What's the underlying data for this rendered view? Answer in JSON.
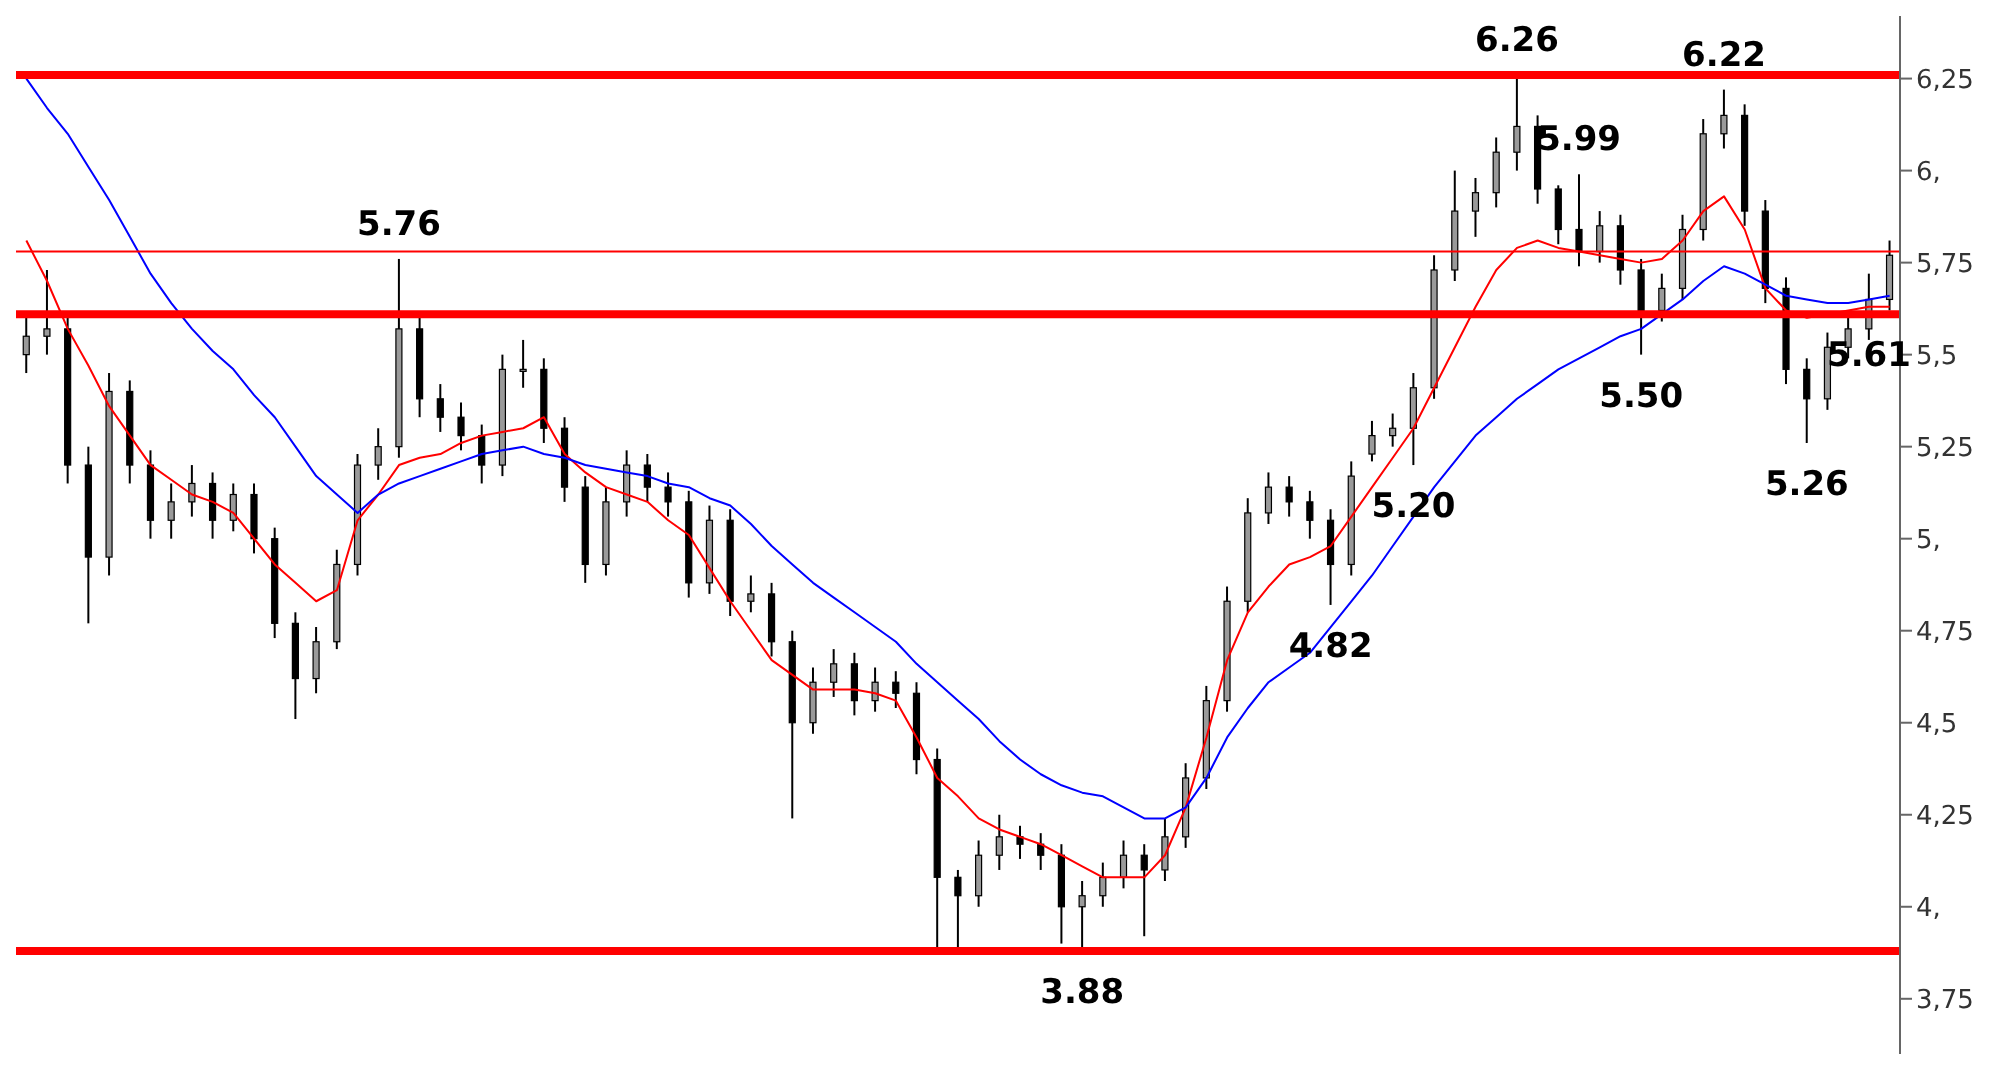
{
  "chart_data": {
    "type": "candlestick",
    "tick_labels": "y",
    "categories": [
      null,
      null,
      null,
      null,
      null,
      null,
      null,
      null,
      null,
      null,
      null,
      null,
      null,
      null,
      null,
      null,
      null,
      null,
      null,
      null,
      null,
      null,
      null,
      null,
      null,
      null,
      null,
      null,
      null,
      null,
      null,
      null,
      null,
      null,
      null,
      null,
      null,
      null,
      null,
      null,
      null,
      null,
      null,
      null,
      null,
      null,
      null,
      null,
      null,
      null,
      null,
      null,
      null,
      null,
      null,
      null,
      null,
      null,
      null,
      null,
      null,
      null,
      null,
      null,
      null,
      null,
      null,
      null,
      null,
      null,
      null,
      null,
      null,
      null,
      null,
      null,
      null,
      null,
      null,
      null,
      null,
      null,
      null,
      null,
      null,
      null,
      null,
      null,
      null,
      null,
      null
    ],
    "ohlc": [
      [
        5.5,
        5.6,
        5.45,
        5.55
      ],
      [
        5.55,
        5.73,
        5.5,
        5.57
      ],
      [
        5.57,
        5.6,
        5.15,
        5.2
      ],
      [
        5.2,
        5.25,
        4.77,
        4.95
      ],
      [
        4.95,
        5.45,
        4.9,
        5.4
      ],
      [
        5.4,
        5.43,
        5.15,
        5.2
      ],
      [
        5.2,
        5.24,
        5.0,
        5.05
      ],
      [
        5.05,
        5.15,
        5.0,
        5.1
      ],
      [
        5.1,
        5.2,
        5.06,
        5.15
      ],
      [
        5.15,
        5.18,
        5.0,
        5.05
      ],
      [
        5.05,
        5.15,
        5.02,
        5.12
      ],
      [
        5.12,
        5.15,
        4.96,
        5.0
      ],
      [
        5.0,
        5.03,
        4.73,
        4.77
      ],
      [
        4.77,
        4.8,
        4.51,
        4.62
      ],
      [
        4.62,
        4.76,
        4.58,
        4.72
      ],
      [
        4.72,
        4.97,
        4.7,
        4.93
      ],
      [
        4.93,
        5.23,
        4.9,
        5.2
      ],
      [
        5.2,
        5.3,
        5.16,
        5.25
      ],
      [
        5.25,
        5.76,
        5.22,
        5.57
      ],
      [
        5.57,
        5.6,
        5.33,
        5.38
      ],
      [
        5.38,
        5.42,
        5.29,
        5.33
      ],
      [
        5.33,
        5.37,
        5.24,
        5.28
      ],
      [
        5.28,
        5.31,
        5.15,
        5.2
      ],
      [
        5.2,
        5.5,
        5.17,
        5.46
      ],
      [
        5.46,
        5.54,
        5.41,
        5.46
      ],
      [
        5.46,
        5.49,
        5.26,
        5.3
      ],
      [
        5.3,
        5.33,
        5.1,
        5.14
      ],
      [
        5.14,
        5.17,
        4.88,
        4.93
      ],
      [
        4.93,
        5.14,
        4.9,
        5.1
      ],
      [
        5.1,
        5.24,
        5.06,
        5.2
      ],
      [
        5.2,
        5.23,
        5.1,
        5.14
      ],
      [
        5.14,
        5.18,
        5.06,
        5.1
      ],
      [
        5.1,
        5.13,
        4.84,
        4.88
      ],
      [
        4.88,
        5.09,
        4.85,
        5.05
      ],
      [
        5.05,
        5.08,
        4.79,
        4.83
      ],
      [
        4.83,
        4.9,
        4.8,
        4.85
      ],
      [
        4.85,
        4.88,
        4.68,
        4.72
      ],
      [
        4.72,
        4.75,
        4.24,
        4.5
      ],
      [
        4.5,
        4.65,
        4.47,
        4.61
      ],
      [
        4.61,
        4.7,
        4.57,
        4.66
      ],
      [
        4.66,
        4.69,
        4.52,
        4.56
      ],
      [
        4.56,
        4.65,
        4.53,
        4.61
      ],
      [
        4.61,
        4.64,
        4.54,
        4.58
      ],
      [
        4.58,
        4.61,
        4.36,
        4.4
      ],
      [
        4.4,
        4.43,
        3.89,
        4.08
      ],
      [
        4.08,
        4.1,
        3.89,
        4.03
      ],
      [
        4.03,
        4.18,
        4.0,
        4.14
      ],
      [
        4.14,
        4.25,
        4.1,
        4.19
      ],
      [
        4.19,
        4.22,
        4.13,
        4.17
      ],
      [
        4.17,
        4.2,
        4.1,
        4.14
      ],
      [
        4.14,
        4.17,
        3.9,
        4.0
      ],
      [
        4.0,
        4.07,
        3.88,
        4.03
      ],
      [
        4.03,
        4.12,
        4.0,
        4.08
      ],
      [
        4.08,
        4.18,
        4.05,
        4.14
      ],
      [
        4.14,
        4.17,
        3.92,
        4.1
      ],
      [
        4.1,
        4.24,
        4.07,
        4.19
      ],
      [
        4.19,
        4.39,
        4.16,
        4.35
      ],
      [
        4.35,
        4.6,
        4.32,
        4.56
      ],
      [
        4.56,
        4.87,
        4.53,
        4.83
      ],
      [
        4.83,
        5.11,
        4.8,
        5.07
      ],
      [
        5.07,
        5.18,
        5.04,
        5.14
      ],
      [
        5.14,
        5.17,
        5.06,
        5.1
      ],
      [
        5.1,
        5.13,
        5.0,
        5.05
      ],
      [
        5.05,
        5.08,
        4.82,
        4.93
      ],
      [
        4.93,
        5.21,
        4.9,
        5.17
      ],
      [
        5.23,
        5.32,
        5.21,
        5.28
      ],
      [
        5.28,
        5.34,
        5.25,
        5.3
      ],
      [
        5.3,
        5.45,
        5.2,
        5.41
      ],
      [
        5.41,
        5.77,
        5.38,
        5.73
      ],
      [
        5.73,
        6.0,
        5.7,
        5.89
      ],
      [
        5.89,
        5.98,
        5.82,
        5.94
      ],
      [
        5.94,
        6.09,
        5.9,
        6.05
      ],
      [
        6.05,
        6.26,
        6.0,
        6.12
      ],
      [
        6.12,
        6.15,
        5.91,
        5.95
      ],
      [
        5.95,
        5.96,
        5.8,
        5.84
      ],
      [
        5.84,
        5.99,
        5.74,
        5.78
      ],
      [
        5.78,
        5.89,
        5.75,
        5.85
      ],
      [
        5.85,
        5.88,
        5.69,
        5.73
      ],
      [
        5.73,
        5.76,
        5.5,
        5.62
      ],
      [
        5.62,
        5.72,
        5.59,
        5.68
      ],
      [
        5.68,
        5.88,
        5.65,
        5.84
      ],
      [
        5.84,
        6.14,
        5.81,
        6.1
      ],
      [
        6.1,
        6.22,
        6.06,
        6.15
      ],
      [
        6.15,
        6.18,
        5.85,
        5.89
      ],
      [
        5.89,
        5.92,
        5.64,
        5.68
      ],
      [
        5.68,
        5.71,
        5.42,
        5.46
      ],
      [
        5.46,
        5.49,
        5.26,
        5.38
      ],
      [
        5.38,
        5.56,
        5.35,
        5.52
      ],
      [
        5.52,
        5.61,
        5.49,
        5.57
      ],
      [
        5.57,
        5.72,
        5.54,
        5.65
      ],
      [
        5.65,
        5.81,
        5.62,
        5.77
      ]
    ],
    "series": [
      {
        "type": "line",
        "color": "#ff0000",
        "values": [
          5.81,
          5.7,
          5.57,
          5.47,
          5.36,
          5.28,
          5.2,
          5.16,
          5.12,
          5.1,
          5.07,
          5.0,
          4.93,
          4.88,
          4.83,
          4.86,
          5.05,
          5.12,
          5.2,
          5.22,
          5.23,
          5.26,
          5.28,
          5.29,
          5.3,
          5.33,
          5.23,
          5.18,
          5.14,
          5.12,
          5.1,
          5.05,
          5.01,
          4.92,
          4.83,
          4.75,
          4.67,
          4.63,
          4.59,
          4.59,
          4.59,
          4.58,
          4.56,
          4.46,
          4.35,
          4.3,
          4.24,
          4.21,
          4.19,
          4.17,
          4.14,
          4.11,
          4.08,
          4.08,
          4.08,
          4.14,
          4.27,
          4.46,
          4.67,
          4.8,
          4.87,
          4.93,
          4.95,
          4.98,
          5.06,
          5.14,
          5.22,
          5.3,
          5.41,
          5.52,
          5.63,
          5.73,
          5.79,
          5.81,
          5.79,
          5.78,
          5.77,
          5.76,
          5.75,
          5.76,
          5.81,
          5.89,
          5.93,
          5.84,
          5.68,
          5.62,
          5.6,
          5.61,
          5.62,
          5.63,
          5.63
        ]
      },
      {
        "type": "line",
        "color": "#0000ff",
        "values": [
          6.25,
          6.17,
          6.1,
          6.01,
          5.92,
          5.82,
          5.72,
          5.64,
          5.57,
          5.51,
          5.46,
          5.39,
          5.33,
          5.25,
          5.17,
          5.12,
          5.07,
          5.12,
          5.15,
          5.17,
          5.19,
          5.21,
          5.23,
          5.24,
          5.25,
          5.23,
          5.22,
          5.2,
          5.19,
          5.18,
          5.17,
          5.15,
          5.14,
          5.11,
          5.09,
          5.04,
          4.98,
          4.93,
          4.88,
          4.84,
          4.8,
          4.76,
          4.72,
          4.66,
          4.61,
          4.56,
          4.51,
          4.45,
          4.4,
          4.36,
          4.33,
          4.31,
          4.3,
          4.27,
          4.24,
          4.24,
          4.27,
          4.35,
          4.46,
          4.54,
          4.61,
          4.65,
          4.69,
          4.76,
          4.83,
          4.9,
          4.98,
          5.06,
          5.14,
          5.21,
          5.28,
          5.33,
          5.38,
          5.42,
          5.46,
          5.49,
          5.52,
          5.55,
          5.57,
          5.61,
          5.65,
          5.7,
          5.74,
          5.72,
          5.69,
          5.66,
          5.65,
          5.64,
          5.64,
          5.65,
          5.66
        ]
      }
    ],
    "ylim": [
      3.6,
      6.42
    ],
    "yticks": [
      {
        "value": 3.75,
        "label": "3,75"
      },
      {
        "value": 4,
        "label": "4,"
      },
      {
        "value": 4.25,
        "label": "4,25"
      },
      {
        "value": 4.5,
        "label": "4,5"
      },
      {
        "value": 4.75,
        "label": "4,75"
      },
      {
        "value": 5,
        "label": "5,"
      },
      {
        "value": 5.25,
        "label": "5,25"
      },
      {
        "value": 5.5,
        "label": "5,5"
      },
      {
        "value": 5.75,
        "label": "5,75"
      },
      {
        "value": 6,
        "label": "6,"
      },
      {
        "value": 6.25,
        "label": "6,25"
      }
    ],
    "ref_lines": [
      {
        "axis": "y",
        "value": 6.26,
        "label": "6.26",
        "color": "#ff0000"
      },
      {
        "axis": "y",
        "value": 5.61,
        "label": "5.61",
        "color": "#ff0000"
      },
      {
        "axis": "y",
        "value": 3.88,
        "label": "3.88",
        "color": "#ff0000"
      },
      {
        "axis": "y",
        "value": 5.78,
        "color": "#ff0000"
      }
    ],
    "annotations": [
      {
        "text": "5.76",
        "y": 5.76
      },
      {
        "text": "5.99",
        "y": 5.99
      },
      {
        "text": "6.22",
        "y": 6.22
      },
      {
        "text": "5.50",
        "y": 5.5
      },
      {
        "text": "5.20",
        "y": 5.2
      },
      {
        "text": "4.82",
        "y": 4.82
      },
      {
        "text": "5.26",
        "y": 5.26
      }
    ]
  }
}
